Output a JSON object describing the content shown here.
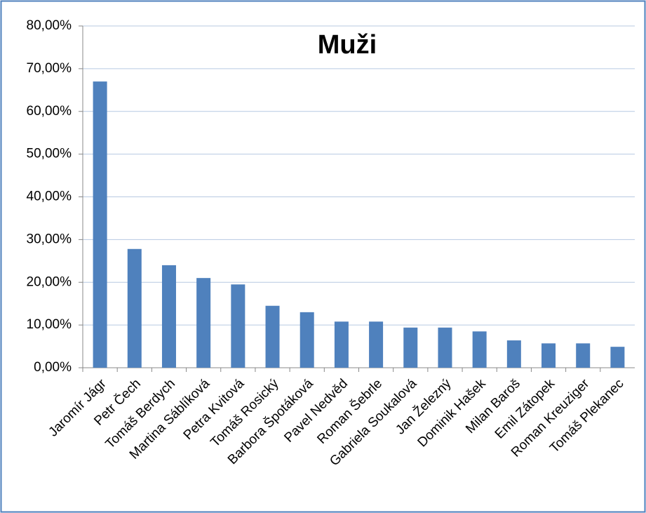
{
  "chart_data": {
    "type": "bar",
    "title": "Muži",
    "categories": [
      "Jaromír Jágr",
      "Petr Čech",
      "Tomáš Berdych",
      "Martina Sáblíková",
      "Petra Kvitová",
      "Tomáš Rosický",
      "Barbora Špotáková",
      "Pavel Nedvěd",
      "Roman Šebrle",
      "Gabriela Soukalová",
      "Jan Železný",
      "Dominik Hašek",
      "Milan Baroš",
      "Emil Zátopek",
      "Roman Kreuziger",
      "Tomáš Plekanec"
    ],
    "values": [
      67.0,
      27.8,
      24.0,
      21.0,
      19.5,
      14.5,
      13.0,
      10.8,
      10.8,
      9.4,
      9.4,
      8.5,
      6.4,
      5.7,
      5.7,
      4.9
    ],
    "color": "#4f81bd",
    "ylim": [
      0,
      80
    ],
    "yticks": [
      {
        "value": 0,
        "label": "0,00%"
      },
      {
        "value": 10,
        "label": "10,00%"
      },
      {
        "value": 20,
        "label": "20,00%"
      },
      {
        "value": 30,
        "label": "30,00%"
      },
      {
        "value": 40,
        "label": "40,00%"
      },
      {
        "value": 50,
        "label": "50,00%"
      },
      {
        "value": 60,
        "label": "60,00%"
      },
      {
        "value": 70,
        "label": "70,00%"
      },
      {
        "value": 80,
        "label": "80,00%"
      }
    ],
    "grid": true
  }
}
